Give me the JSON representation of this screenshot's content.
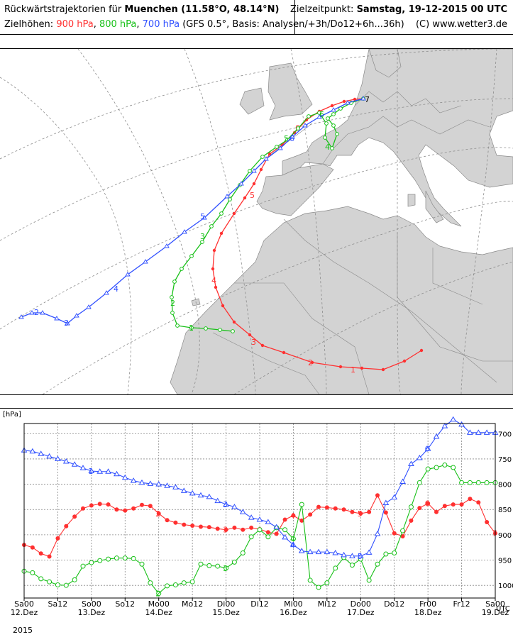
{
  "header": {
    "title_prefix": "Rückwärtstrajektorien für ",
    "location": "Muenchen (11.58°O, 48.14°N)",
    "target_label": "Zielzeitpunkt: ",
    "target_time": "Samstag, 19-12-2015  00 UTC",
    "heights_label": "Zielhöhen: ",
    "h900": "900 hPa",
    "h800": "800 hPa",
    "h700": "700 hPa",
    "model_info": "(GFS 0.5°, Basis: Analysen/+3h/Do12+6h...36h)",
    "copyright": "(C) www.wetter3.de",
    "comma": ", "
  },
  "colors": {
    "p900": "#ff3030",
    "p800": "#18c018",
    "p700": "#3050ff"
  },
  "map": {
    "red_labels": [
      "1",
      "2",
      "3",
      "4",
      "5",
      "6",
      "7"
    ],
    "green_labels": [
      "1",
      "2",
      "3",
      "4",
      "5",
      "6"
    ],
    "blue_labels": [
      "2",
      "3",
      "4",
      "5",
      "6"
    ]
  },
  "chart_data": {
    "type": "line",
    "ylabel": "[hPa]",
    "x_unit_label": "UTC",
    "x_ticks": [
      "Sa00",
      "Sa12",
      "So00",
      "So12",
      "Mo00",
      "Mo12",
      "Di00",
      "Di12",
      "Mi00",
      "Mi12",
      "Do00",
      "Do12",
      "Fr00",
      "Fr12",
      "Sa00"
    ],
    "x_dates": [
      "12.Dez",
      "13.Dez",
      "14.Dez",
      "15.Dez",
      "16.Dez",
      "17.Dez",
      "18.Dez",
      "19.Dez"
    ],
    "x_year": "2015",
    "y_ticks": [
      700,
      750,
      800,
      850,
      900,
      950,
      1000
    ],
    "ylim": [
      1025,
      680
    ],
    "xlim_hours": [
      0,
      168
    ],
    "grid": true,
    "series": [
      {
        "name": "900 hPa",
        "color": "#ff3030",
        "x": [
          0,
          3,
          6,
          9,
          12,
          15,
          18,
          21,
          24,
          27,
          30,
          33,
          36,
          39,
          42,
          45,
          48,
          51,
          54,
          57,
          60,
          63,
          66,
          69,
          72,
          75,
          78,
          81,
          84,
          87,
          90,
          93,
          96,
          99,
          102,
          105,
          108,
          111,
          114,
          117,
          120,
          123,
          126,
          129,
          132,
          135,
          138,
          141,
          144,
          147,
          150,
          153,
          156,
          159,
          162,
          165,
          168
        ],
        "values": [
          920,
          925,
          937,
          943,
          907,
          883,
          864,
          848,
          842,
          839,
          840,
          850,
          852,
          848,
          841,
          843,
          858,
          871,
          876,
          880,
          882,
          884,
          885,
          888,
          890,
          886,
          890,
          886,
          889,
          895,
          898,
          870,
          862,
          872,
          860,
          845,
          846,
          848,
          850,
          855,
          858,
          855,
          822,
          856,
          897,
          903,
          872,
          847,
          838,
          855,
          843,
          840,
          840,
          829,
          836,
          875,
          897
        ],
        "day_markers": [
          {
            "x": 48,
            "label": "2"
          },
          {
            "x": 72,
            "label": "3"
          },
          {
            "x": 96,
            "label": "4"
          },
          {
            "x": 120,
            "label": "5"
          },
          {
            "x": 144,
            "label": "6"
          },
          {
            "x": 168,
            "label": "7"
          }
        ]
      },
      {
        "name": "800 hPa",
        "color": "#18c018",
        "x": [
          0,
          3,
          6,
          9,
          12,
          15,
          18,
          21,
          24,
          27,
          30,
          33,
          36,
          39,
          42,
          45,
          48,
          51,
          54,
          57,
          60,
          63,
          66,
          69,
          72,
          75,
          78,
          81,
          84,
          87,
          90,
          93,
          96,
          99,
          102,
          105,
          108,
          111,
          114,
          117,
          120,
          123,
          126,
          129,
          132,
          135,
          138,
          141,
          144,
          147,
          150,
          153,
          156,
          159,
          162,
          165,
          168
        ],
        "values": [
          972,
          975,
          987,
          993,
          999,
          1000,
          989,
          962,
          955,
          951,
          948,
          946,
          946,
          947,
          958,
          995,
          1016,
          1001,
          999,
          995,
          993,
          958,
          961,
          962,
          966,
          954,
          936,
          904,
          890,
          904,
          886,
          890,
          908,
          840,
          990,
          1004,
          995,
          966,
          945,
          960,
          948,
          990,
          958,
          938,
          936,
          892,
          845,
          797,
          770,
          767,
          762,
          767,
          797,
          797,
          797,
          797,
          797
        ],
        "day_markers": [
          {
            "x": 48,
            "label": "2"
          },
          {
            "x": 72,
            "label": "3"
          },
          {
            "x": 96,
            "label": "4"
          }
        ]
      },
      {
        "name": "700 hPa",
        "color": "#3050ff",
        "x": [
          0,
          3,
          6,
          9,
          12,
          15,
          18,
          21,
          24,
          27,
          30,
          33,
          36,
          39,
          42,
          45,
          48,
          51,
          54,
          57,
          60,
          63,
          66,
          69,
          72,
          75,
          78,
          81,
          84,
          87,
          90,
          93,
          96,
          99,
          102,
          105,
          108,
          111,
          114,
          117,
          120,
          123,
          126,
          129,
          132,
          135,
          138,
          141,
          144,
          147,
          150,
          153,
          156,
          159,
          162,
          165,
          168
        ],
        "values": [
          733,
          735,
          740,
          745,
          750,
          755,
          761,
          768,
          774,
          775,
          775,
          780,
          787,
          793,
          797,
          799,
          800,
          803,
          806,
          813,
          818,
          822,
          825,
          833,
          840,
          845,
          855,
          866,
          870,
          875,
          885,
          905,
          920,
          932,
          934,
          934,
          934,
          936,
          940,
          942,
          942,
          935,
          898,
          837,
          826,
          795,
          760,
          748,
          730,
          706,
          685,
          672,
          682,
          698,
          698,
          698,
          698
        ],
        "day_markers": [
          {
            "x": 24,
            "label": "1"
          },
          {
            "x": 72,
            "label": "3"
          },
          {
            "x": 96,
            "label": "4"
          },
          {
            "x": 120,
            "label": "5"
          },
          {
            "x": 144,
            "label": "6"
          }
        ]
      }
    ]
  }
}
